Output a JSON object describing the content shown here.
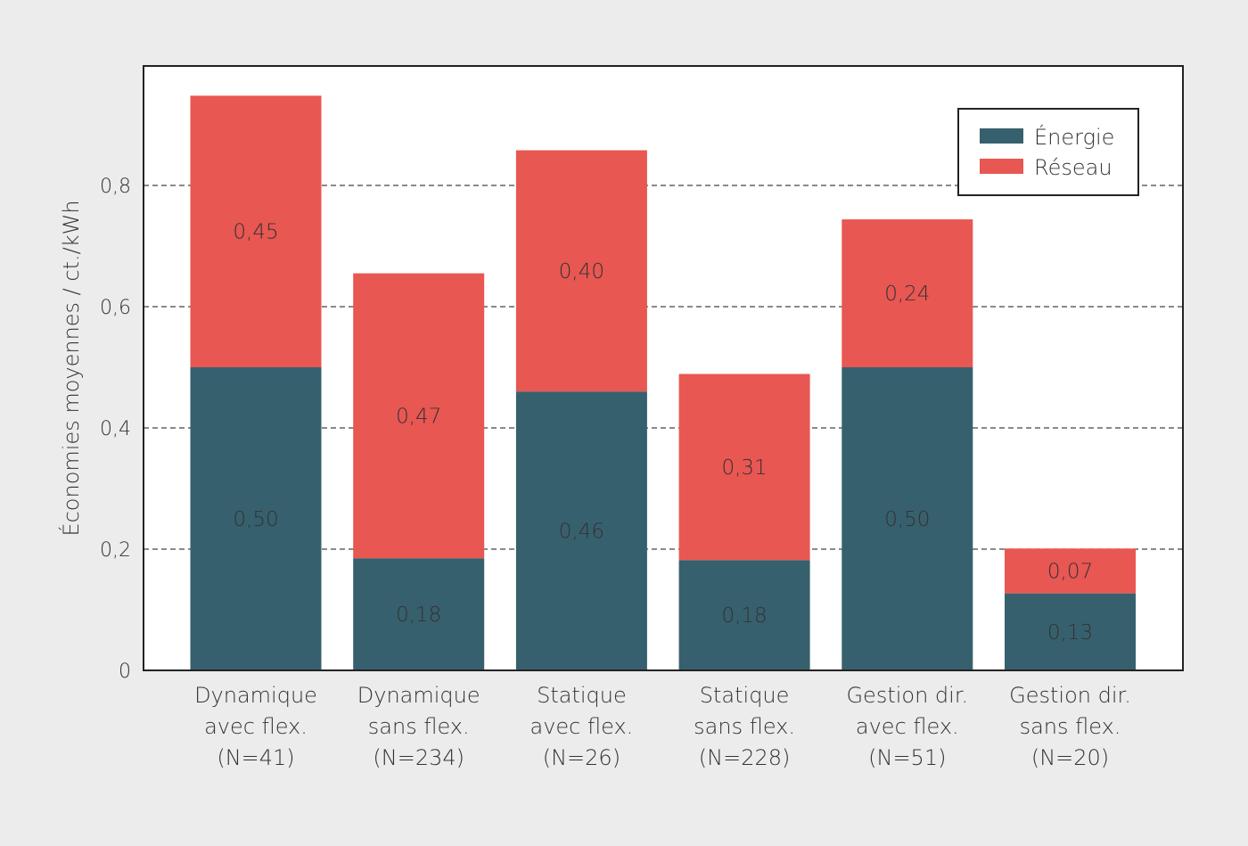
{
  "chart_data": {
    "type": "bar",
    "stacked": true,
    "title": "",
    "xlabel": "",
    "ylabel": "Économies moyennes / ct./kWh",
    "ylim": [
      0,
      0.98
    ],
    "yticks": [
      "0",
      "0,2",
      "0,4",
      "0,6",
      "0,8"
    ],
    "ytick_values": [
      0,
      0.2,
      0.4,
      0.6,
      0.8
    ],
    "grid": "horizontal-dashed",
    "legend_position": "top-right",
    "categories": [
      [
        "Dynamique",
        "avec flex.",
        "(N=41)"
      ],
      [
        "Dynamique",
        "sans flex.",
        "(N=234)"
      ],
      [
        "Statique",
        "avec flex.",
        "(N=26)"
      ],
      [
        "Statique",
        "sans flex.",
        "(N=228)"
      ],
      [
        "Gestion dir.",
        "avec flex.",
        "(N=51)"
      ],
      [
        "Gestion dir.",
        "sans flex.",
        "(N=20)"
      ]
    ],
    "series": [
      {
        "name": "Énergie",
        "color": "#37606e",
        "values": [
          0.5,
          0.18,
          0.46,
          0.18,
          0.5,
          0.13
        ],
        "labels": [
          "0,50",
          "0,18",
          "0,46",
          "0,18",
          "0,50",
          "0,13"
        ],
        "display_heights": [
          0.5,
          0.185,
          0.46,
          0.182,
          0.5,
          0.127
        ]
      },
      {
        "name": "Réseau",
        "color": "#e85752",
        "values": [
          0.45,
          0.47,
          0.4,
          0.31,
          0.24,
          0.07
        ],
        "labels": [
          "0,45",
          "0,47",
          "0,40",
          "0,31",
          "0,24",
          "0,07"
        ],
        "display_heights": [
          0.448,
          0.47,
          0.398,
          0.307,
          0.244,
          0.074
        ]
      }
    ]
  }
}
